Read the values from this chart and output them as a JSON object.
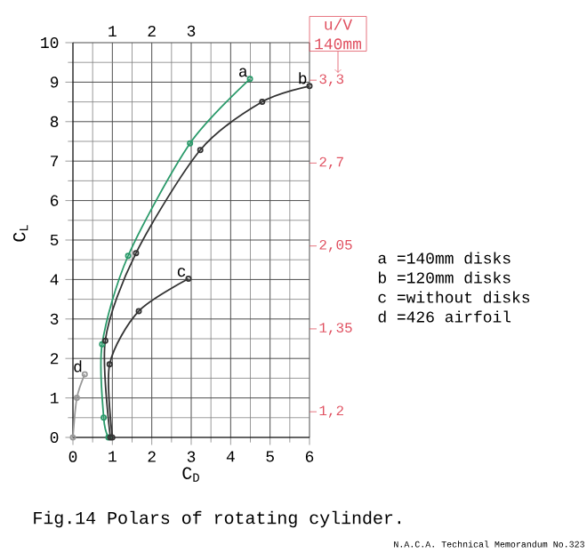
{
  "chart_data": {
    "type": "line",
    "title": "Fig.14 Polars of rotating cylinder.",
    "xlabel": "C$_{D}$",
    "ylabel": "C$_{L}$",
    "xlim": [
      0,
      6
    ],
    "ylim": [
      0,
      10
    ],
    "xticks": [
      0,
      1,
      2,
      3,
      4,
      5,
      6
    ],
    "yticks": [
      0,
      1,
      2,
      3,
      4,
      5,
      6,
      7,
      8,
      9,
      10
    ],
    "x2lim": [
      0,
      6
    ],
    "x2ticks": [
      1,
      2,
      3
    ],
    "grid": true,
    "marker": "circle",
    "series": [
      {
        "name": "a",
        "color": "#2a9a6a",
        "x": [
          0.9,
          0.78,
          0.74,
          1.4,
          2.97,
          4.49
        ],
        "values": [
          0,
          0.5,
          2.36,
          4.6,
          7.45,
          9.08
        ]
      },
      {
        "name": "b",
        "color": "#333333",
        "x": [
          0.95,
          0.82,
          1.6,
          3.23,
          4.8,
          6.0
        ],
        "values": [
          0,
          2.45,
          4.67,
          7.28,
          8.5,
          8.9
        ]
      },
      {
        "name": "c",
        "color": "#333333",
        "x": [
          1.0,
          0.93,
          1.67,
          2.93
        ],
        "values": [
          0,
          1.85,
          3.2,
          4.02
        ]
      },
      {
        "name": "d",
        "color": "#999999",
        "x": [
          0,
          0.1,
          0.3
        ],
        "values": [
          0,
          1.0,
          1.6
        ]
      }
    ],
    "annotations": [
      "u/V 140mm",
      "3,3",
      "2,7",
      "2,05",
      "1,35",
      "1,2",
      "a =140mm disks",
      "b =120mm disks",
      "c =without disks",
      "d =426 airfoil",
      "N.A.C.A. Technical Memorandum No.323"
    ]
  }
}
